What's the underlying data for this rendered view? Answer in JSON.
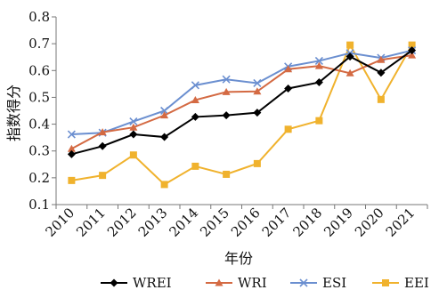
{
  "chart_data": {
    "type": "line",
    "title": "",
    "xlabel": "年份",
    "ylabel": "指数得分",
    "x": [
      "2010",
      "2011",
      "2012",
      "2013",
      "2014",
      "2015",
      "2016",
      "2017",
      "2018",
      "2019",
      "2020",
      "2021"
    ],
    "ylim": [
      0.1,
      0.8
    ],
    "yticks": [
      "0.1",
      "0.2",
      "0.3",
      "0.4",
      "0.5",
      "0.6",
      "0.7",
      "0.8"
    ],
    "grid": false,
    "legend_position": "bottom",
    "series": [
      {
        "name": "WREI",
        "color": "#000000",
        "marker": "diamond",
        "values": [
          0.288,
          0.318,
          0.362,
          0.352,
          0.427,
          0.433,
          0.443,
          0.533,
          0.556,
          0.652,
          0.592,
          0.675
        ]
      },
      {
        "name": "WRI",
        "color": "#d46a43",
        "marker": "triangle",
        "values": [
          0.308,
          0.37,
          0.388,
          0.433,
          0.49,
          0.52,
          0.522,
          0.605,
          0.617,
          0.59,
          0.64,
          0.657
        ]
      },
      {
        "name": "ESI",
        "color": "#6b8fd0",
        "marker": "x",
        "values": [
          0.362,
          0.368,
          0.41,
          0.45,
          0.545,
          0.567,
          0.553,
          0.615,
          0.636,
          0.665,
          0.647,
          0.675
        ]
      },
      {
        "name": "EEI",
        "color": "#f0b22d",
        "marker": "square",
        "values": [
          0.19,
          0.209,
          0.285,
          0.175,
          0.243,
          0.213,
          0.253,
          0.381,
          0.413,
          0.695,
          0.492,
          0.695
        ]
      }
    ]
  }
}
